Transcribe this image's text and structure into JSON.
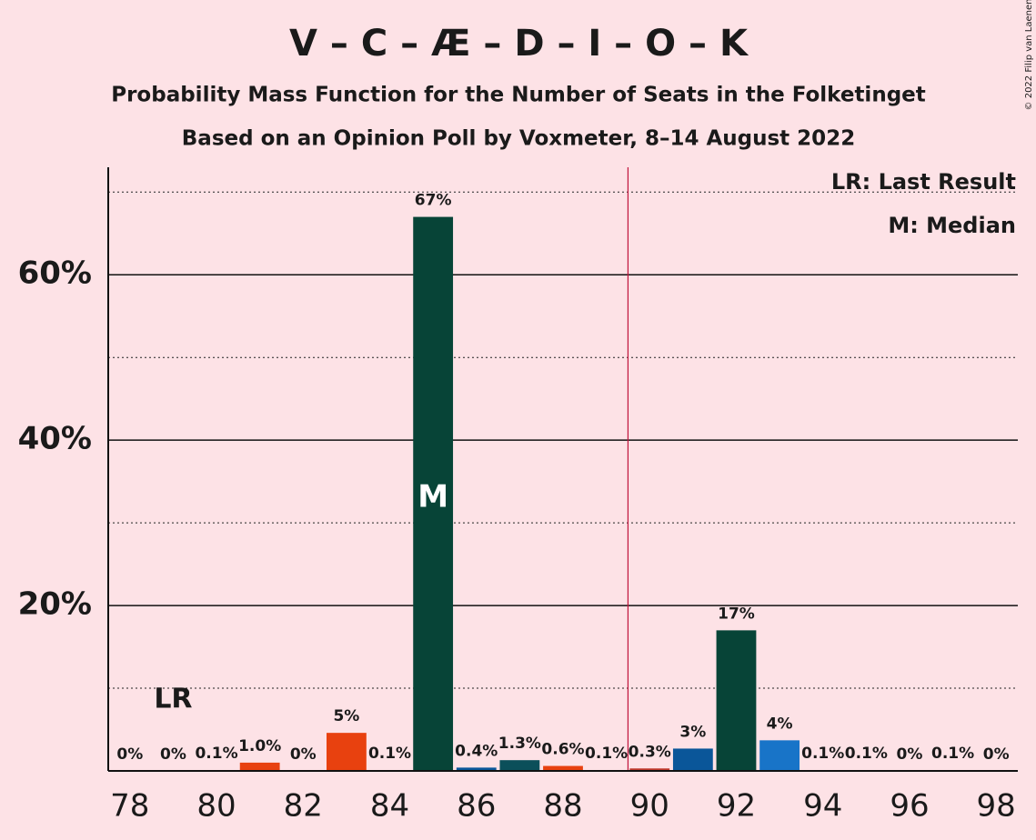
{
  "chart_data": {
    "type": "bar",
    "title": "V – C – Æ – D – I – O – K",
    "subtitle": "Probability Mass Function for the Number of Seats in the Folketinget",
    "subtitle2": "Based on an Opinion Poll by Voxmeter, 8–14 August 2022",
    "copyright": "© 2022 Filip van Laenen",
    "x": [
      78,
      79,
      80,
      81,
      82,
      83,
      84,
      85,
      86,
      87,
      88,
      89,
      90,
      91,
      92,
      93,
      94,
      95,
      96,
      97,
      98
    ],
    "values": [
      0,
      0,
      0.1,
      1.0,
      0,
      4.6,
      0.1,
      67,
      0.4,
      1.3,
      0.6,
      0.1,
      0.3,
      2.7,
      17,
      3.7,
      0.1,
      0.1,
      0,
      0.1,
      0
    ],
    "value_labels": [
      "0%",
      "0%",
      "0.1%",
      "1.0%",
      "0%",
      "5%",
      "0.1%",
      "67%",
      "0.4%",
      "1.3%",
      "0.6%",
      "0.1%",
      "0.3%",
      "3%",
      "17%",
      "4%",
      "0.1%",
      "0.1%",
      "0%",
      "0.1%",
      "0%"
    ],
    "colors": [
      "#e8410f",
      "#e8410f",
      "#e8410f",
      "#e8410f",
      "#e8410f",
      "#e8410f",
      "#074437",
      "#074437",
      "#0a5699",
      "#0b4f5a",
      "#e8410f",
      "#e8410f",
      "#c0392b",
      "#0a5699",
      "#074437",
      "#1874c8",
      "#1874c8",
      "#1874c8",
      "#1874c8",
      "#1874c8",
      "#1874c8"
    ],
    "xlim": [
      77.5,
      98.5
    ],
    "xticks": [
      78,
      80,
      82,
      84,
      86,
      88,
      90,
      92,
      94,
      96,
      98
    ],
    "ylim": [
      0,
      73
    ],
    "yticks": [
      {
        "value": 20,
        "label": "20%"
      },
      {
        "value": 40,
        "label": "40%"
      },
      {
        "value": 60,
        "label": "60%"
      }
    ],
    "minor_yticks": [
      10,
      30,
      50,
      70
    ],
    "majority_line": 89.5,
    "last_result": {
      "x": 79,
      "label": "LR"
    },
    "median": {
      "x": 85,
      "label": "M"
    },
    "legend": [
      "LR: Last Result",
      "M: Median"
    ]
  }
}
